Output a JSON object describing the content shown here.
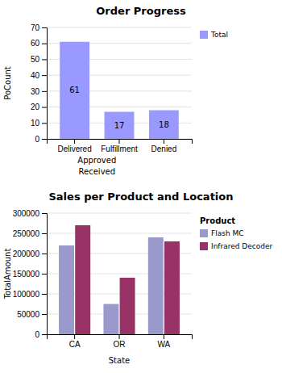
{
  "chart_data": [
    {
      "type": "bar",
      "title": "Order Progress",
      "ylabel": "PoCount",
      "categories": [
        "Delivered",
        "Fulfillment",
        "Denied"
      ],
      "series": [
        {
          "name": "Total",
          "color": "#9999ff",
          "values": [
            61,
            17,
            18
          ]
        }
      ],
      "annotations": [
        "Approved",
        "Received"
      ],
      "ylim": [
        0,
        70
      ],
      "yticks": [
        0,
        10,
        20,
        30,
        40,
        50,
        60,
        70
      ],
      "grid": true,
      "legend": "right",
      "data_labels": true
    },
    {
      "type": "bar",
      "title": "Sales per Product and Location",
      "ylabel": "TotalAmount",
      "xlabel": "State",
      "legend_title": "Product",
      "categories": [
        "CA",
        "OR",
        "WA"
      ],
      "series": [
        {
          "name": "Flash MC",
          "color": "#9999cc",
          "values": [
            220000,
            75000,
            240000
          ]
        },
        {
          "name": "Infrared Decoder",
          "color": "#993366",
          "values": [
            270000,
            140000,
            230000
          ]
        }
      ],
      "ylim": [
        0,
        300000
      ],
      "yticks": [
        0,
        50000,
        100000,
        150000,
        200000,
        250000,
        300000
      ],
      "grid": true,
      "legend": "right"
    }
  ]
}
